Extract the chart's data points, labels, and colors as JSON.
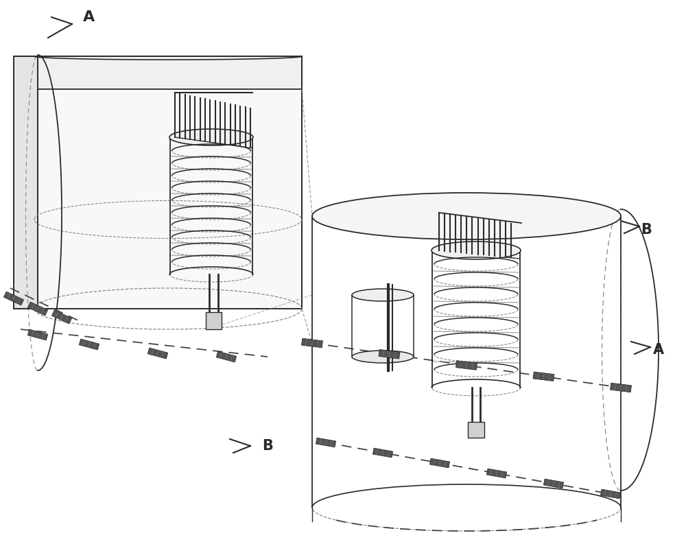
{
  "bg_color": "#ffffff",
  "lc": "#2a2a2a",
  "lc_light": "#888888",
  "lc_dashed": "#444444",
  "figure_width": 10.0,
  "figure_height": 8.09,
  "dpi": 100,
  "labels": {
    "A_top": "A",
    "A_bottom": "A",
    "B_top": "B",
    "B_bottom": "B"
  }
}
